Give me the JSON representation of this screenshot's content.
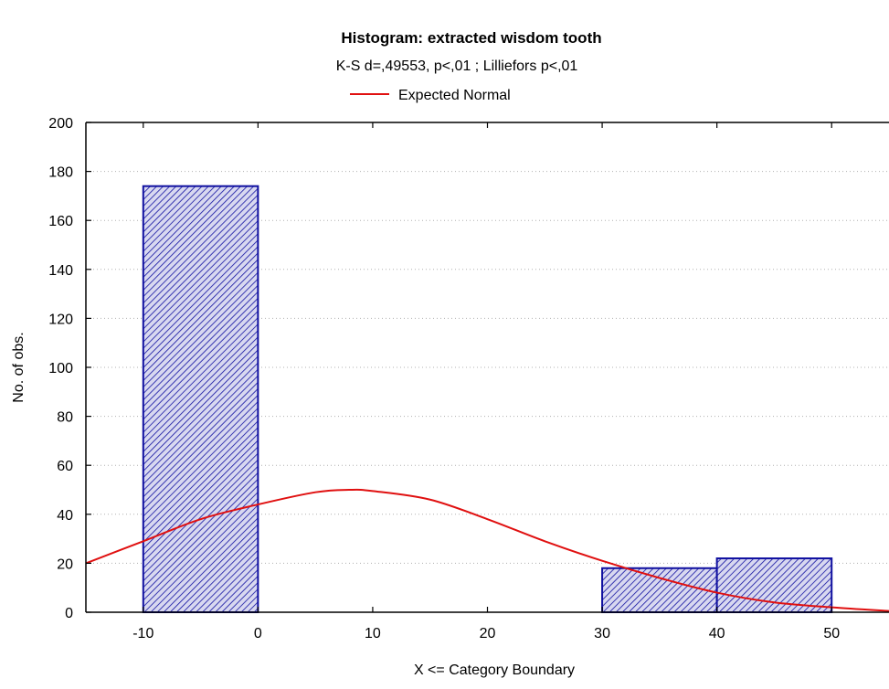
{
  "chart_data": {
    "type": "bar",
    "title": "Histogram: extracted wisdom tooth",
    "subtitle": "K-S d=,49553, p<,01 ; Lilliefors p<,01",
    "xlabel": "X <= Category Boundary",
    "ylabel": "No. of obs.",
    "xlim": [
      -15,
      55
    ],
    "ylim": [
      0,
      200
    ],
    "x_ticks": [
      -10,
      0,
      10,
      20,
      30,
      40,
      50
    ],
    "y_ticks": [
      0,
      20,
      40,
      60,
      80,
      100,
      120,
      140,
      160,
      180,
      200
    ],
    "grid": true,
    "legend_position": "top-center",
    "bins": [
      {
        "from": -10,
        "to": 0,
        "count": 174
      },
      {
        "from": 0,
        "to": 10,
        "count": 0
      },
      {
        "from": 10,
        "to": 20,
        "count": 0
      },
      {
        "from": 20,
        "to": 30,
        "count": 0
      },
      {
        "from": 30,
        "to": 40,
        "count": 18
      },
      {
        "from": 40,
        "to": 50,
        "count": 22
      }
    ],
    "series": [
      {
        "name": "Expected Normal",
        "type": "line",
        "color": "#e01010",
        "x": [
          -15,
          -10,
          -5,
          0,
          5,
          8,
          10,
          15,
          20,
          25,
          30,
          35,
          40,
          45,
          50,
          55
        ],
        "y": [
          20,
          29,
          38,
          44,
          49,
          50,
          49.5,
          46,
          38,
          29,
          21,
          14,
          8,
          4,
          2,
          0.5
        ]
      }
    ],
    "bar_color": "#1010a0"
  }
}
